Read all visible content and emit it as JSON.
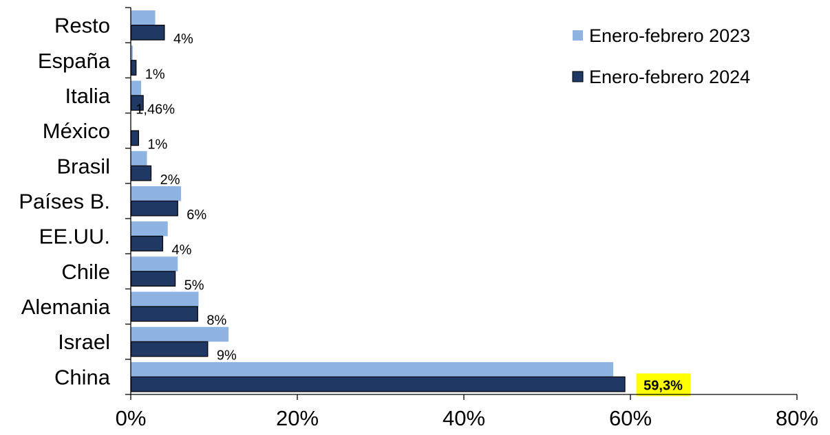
{
  "chart_data": {
    "type": "bar",
    "orientation": "horizontal",
    "categories": [
      "Resto",
      "España",
      "Italia",
      "México",
      "Brasil",
      "Países B.",
      "EE.UU.",
      "Chile",
      "Alemania",
      "Israel",
      "China"
    ],
    "series": [
      {
        "name": "Enero-febrero 2023",
        "color": "#8EB4E3",
        "values": [
          2.9,
          0.2,
          1.2,
          0.0,
          1.9,
          6.0,
          4.4,
          5.6,
          8.1,
          11.7,
          57.9
        ]
      },
      {
        "name": "Enero-febrero 2024",
        "color": "#1F3864",
        "values": [
          4.0,
          0.6,
          1.46,
          0.9,
          2.4,
          5.6,
          3.8,
          5.3,
          8.0,
          9.2,
          59.3
        ],
        "data_labels": [
          "4%",
          "1%",
          "1,46%",
          "1%",
          "2%",
          "6%",
          "4%",
          "5%",
          "8%",
          "9%",
          "59,3%"
        ],
        "highlighted_label": "59,3%",
        "highlight_color": "#FFFF00"
      }
    ],
    "xlim": [
      0,
      80
    ],
    "xticks": [
      0,
      20,
      40,
      60,
      80
    ],
    "xtick_labels": [
      "0%",
      "20%",
      "40%",
      "60%",
      "80%"
    ],
    "title": "",
    "xlabel": "",
    "ylabel": "",
    "grid": false,
    "legend_position": "top-right"
  }
}
